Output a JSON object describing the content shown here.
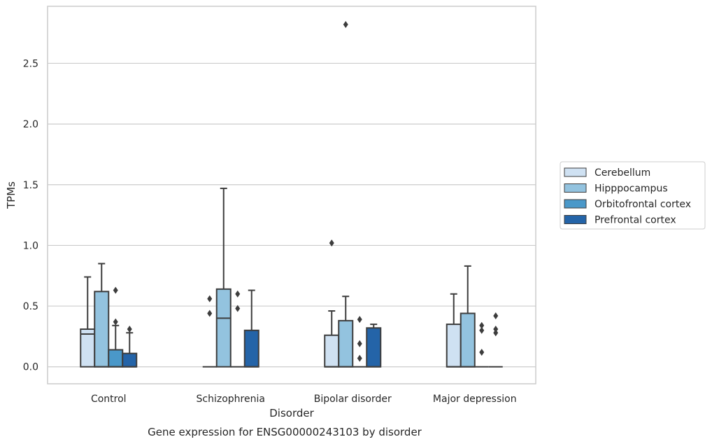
{
  "chart_data": {
    "type": "box",
    "xlabel": "Disorder",
    "ylabel": "TPMs",
    "caption": "Gene expression for ENSG00000243103 by disorder",
    "categories": [
      "Control",
      "Schizophrenia",
      "Bipolar disorder",
      "Major depression"
    ],
    "ylim": [
      -0.14,
      2.97
    ],
    "yticks": [
      0.0,
      0.5,
      1.0,
      1.5,
      2.0,
      2.5
    ],
    "ytick_labels": [
      "0.0",
      "0.5",
      "1.0",
      "1.5",
      "2.0",
      "2.5"
    ],
    "grid": "horizontal",
    "legend_position": "outside-right",
    "series": [
      {
        "name": "Cerebellum",
        "color": "#cfe1f2",
        "boxes": [
          {
            "category": "Control",
            "q1": 0.0,
            "median": 0.27,
            "q3": 0.31,
            "whisker_low": 0.0,
            "whisker_high": 0.74,
            "outliers": []
          },
          {
            "category": "Schizophrenia",
            "q1": 0.0,
            "median": 0.0,
            "q3": 0.0,
            "whisker_low": 0.0,
            "whisker_high": 0.0,
            "outliers": [
              0.44,
              0.56
            ]
          },
          {
            "category": "Bipolar disorder",
            "q1": 0.0,
            "median": 0.0,
            "q3": 0.26,
            "whisker_low": 0.0,
            "whisker_high": 0.46,
            "outliers": [
              1.02
            ]
          },
          {
            "category": "Major depression",
            "q1": 0.0,
            "median": 0.0,
            "q3": 0.35,
            "whisker_low": 0.0,
            "whisker_high": 0.6,
            "outliers": []
          }
        ]
      },
      {
        "name": "Hipppocampus",
        "color": "#93c3df",
        "boxes": [
          {
            "category": "Control",
            "q1": 0.0,
            "median": 0.0,
            "q3": 0.62,
            "whisker_low": 0.0,
            "whisker_high": 0.85,
            "outliers": []
          },
          {
            "category": "Schizophrenia",
            "q1": 0.0,
            "median": 0.4,
            "q3": 0.64,
            "whisker_low": 0.0,
            "whisker_high": 1.47,
            "outliers": []
          },
          {
            "category": "Bipolar disorder",
            "q1": 0.0,
            "median": 0.0,
            "q3": 0.38,
            "whisker_low": 0.0,
            "whisker_high": 0.58,
            "outliers": [
              2.82
            ]
          },
          {
            "category": "Major depression",
            "q1": 0.0,
            "median": 0.0,
            "q3": 0.44,
            "whisker_low": 0.0,
            "whisker_high": 0.83,
            "outliers": []
          }
        ]
      },
      {
        "name": "Orbitofrontal cortex",
        "color": "#4a98c9",
        "boxes": [
          {
            "category": "Control",
            "q1": 0.0,
            "median": 0.0,
            "q3": 0.14,
            "whisker_low": 0.0,
            "whisker_high": 0.34,
            "outliers": [
              0.37,
              0.63
            ]
          },
          {
            "category": "Schizophrenia",
            "q1": 0.0,
            "median": 0.0,
            "q3": 0.0,
            "whisker_low": 0.0,
            "whisker_high": 0.0,
            "outliers": [
              0.48,
              0.6
            ]
          },
          {
            "category": "Bipolar disorder",
            "q1": 0.0,
            "median": 0.0,
            "q3": 0.0,
            "whisker_low": 0.0,
            "whisker_high": 0.0,
            "outliers": [
              0.07,
              0.19,
              0.39
            ]
          },
          {
            "category": "Major depression",
            "q1": 0.0,
            "median": 0.0,
            "q3": 0.0,
            "whisker_low": 0.0,
            "whisker_high": 0.0,
            "outliers": [
              0.12,
              0.3,
              0.34
            ]
          }
        ]
      },
      {
        "name": "Prefrontal cortex",
        "color": "#2464a8",
        "boxes": [
          {
            "category": "Control",
            "q1": 0.0,
            "median": 0.0,
            "q3": 0.11,
            "whisker_low": 0.0,
            "whisker_high": 0.28,
            "outliers": [
              0.31
            ]
          },
          {
            "category": "Schizophrenia",
            "q1": 0.0,
            "median": 0.0,
            "q3": 0.3,
            "whisker_low": 0.0,
            "whisker_high": 0.63,
            "outliers": []
          },
          {
            "category": "Bipolar disorder",
            "q1": 0.0,
            "median": 0.0,
            "q3": 0.32,
            "whisker_low": 0.0,
            "whisker_high": 0.35,
            "outliers": []
          },
          {
            "category": "Major depression",
            "q1": 0.0,
            "median": 0.0,
            "q3": 0.0,
            "whisker_low": 0.0,
            "whisker_high": 0.0,
            "outliers": [
              0.28,
              0.31,
              0.42
            ]
          }
        ]
      }
    ]
  },
  "colors": {
    "line": "#3d3d3d",
    "grid": "#cccccc",
    "spine": "#cccccc",
    "text": "#262626"
  }
}
